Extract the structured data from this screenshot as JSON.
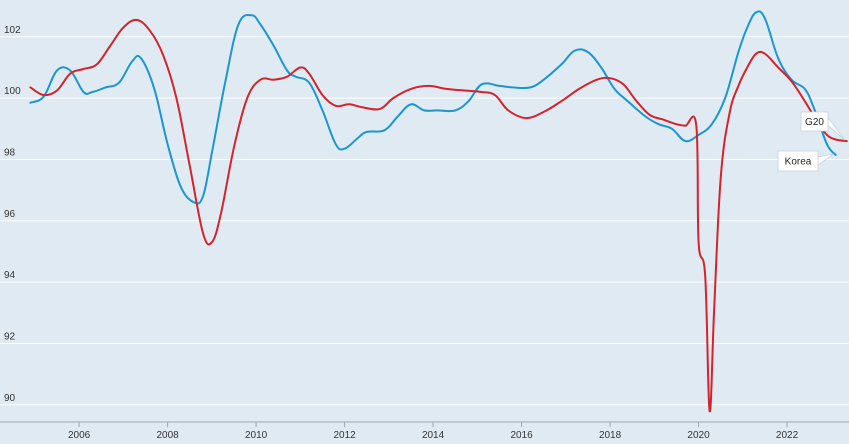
{
  "chart_data": {
    "type": "line",
    "title": "",
    "xlabel": "",
    "ylabel": "",
    "xlim": [
      2004.8,
      2023.4
    ],
    "ylim": [
      89.7,
      103.2
    ],
    "x_ticks": [
      2006,
      2008,
      2010,
      2012,
      2014,
      2016,
      2018,
      2020,
      2022
    ],
    "y_ticks": [
      90,
      92,
      94,
      96,
      98,
      100,
      102
    ],
    "grid": "horizontal",
    "series": [
      {
        "name": "Korea",
        "color": "#1a96d4",
        "points": [
          [
            2004.9,
            99.85
          ],
          [
            2005.2,
            100.05
          ],
          [
            2005.5,
            100.9
          ],
          [
            2005.8,
            100.9
          ],
          [
            2006.1,
            100.2
          ],
          [
            2006.3,
            100.2
          ],
          [
            2006.6,
            100.35
          ],
          [
            2006.9,
            100.5
          ],
          [
            2007.2,
            101.2
          ],
          [
            2007.4,
            101.3
          ],
          [
            2007.7,
            100.3
          ],
          [
            2008.0,
            98.5
          ],
          [
            2008.3,
            97.1
          ],
          [
            2008.6,
            96.6
          ],
          [
            2008.8,
            96.8
          ],
          [
            2009.0,
            98.2
          ],
          [
            2009.3,
            100.5
          ],
          [
            2009.6,
            102.4
          ],
          [
            2009.9,
            102.7
          ],
          [
            2010.1,
            102.4
          ],
          [
            2010.4,
            101.7
          ],
          [
            2010.7,
            100.9
          ],
          [
            2010.9,
            100.7
          ],
          [
            2011.2,
            100.5
          ],
          [
            2011.5,
            99.6
          ],
          [
            2011.8,
            98.5
          ],
          [
            2012.0,
            98.35
          ],
          [
            2012.3,
            98.7
          ],
          [
            2012.5,
            98.9
          ],
          [
            2012.9,
            98.95
          ],
          [
            2013.2,
            99.4
          ],
          [
            2013.5,
            99.8
          ],
          [
            2013.8,
            99.6
          ],
          [
            2014.1,
            99.6
          ],
          [
            2014.5,
            99.6
          ],
          [
            2014.8,
            99.9
          ],
          [
            2015.1,
            100.45
          ],
          [
            2015.5,
            100.4
          ],
          [
            2015.8,
            100.35
          ],
          [
            2016.2,
            100.35
          ],
          [
            2016.5,
            100.6
          ],
          [
            2016.9,
            101.1
          ],
          [
            2017.2,
            101.55
          ],
          [
            2017.5,
            101.5
          ],
          [
            2017.8,
            101.0
          ],
          [
            2018.1,
            100.3
          ],
          [
            2018.4,
            99.9
          ],
          [
            2018.8,
            99.4
          ],
          [
            2019.1,
            99.15
          ],
          [
            2019.4,
            99.0
          ],
          [
            2019.7,
            98.6
          ],
          [
            2020.0,
            98.8
          ],
          [
            2020.3,
            99.15
          ],
          [
            2020.6,
            100.0
          ],
          [
            2020.9,
            101.5
          ],
          [
            2021.1,
            102.3
          ],
          [
            2021.3,
            102.8
          ],
          [
            2021.5,
            102.6
          ],
          [
            2021.8,
            101.3
          ],
          [
            2022.1,
            100.6
          ],
          [
            2022.4,
            100.3
          ],
          [
            2022.6,
            99.7
          ],
          [
            2022.9,
            98.5
          ],
          [
            2023.1,
            98.15
          ]
        ]
      },
      {
        "name": "G20",
        "color": "#d4232b",
        "points": [
          [
            2004.9,
            100.35
          ],
          [
            2005.2,
            100.1
          ],
          [
            2005.5,
            100.25
          ],
          [
            2005.8,
            100.8
          ],
          [
            2006.1,
            100.95
          ],
          [
            2006.4,
            101.1
          ],
          [
            2006.7,
            101.7
          ],
          [
            2007.0,
            102.3
          ],
          [
            2007.3,
            102.55
          ],
          [
            2007.6,
            102.2
          ],
          [
            2007.9,
            101.4
          ],
          [
            2008.2,
            100.0
          ],
          [
            2008.5,
            97.8
          ],
          [
            2008.8,
            95.6
          ],
          [
            2009.0,
            95.3
          ],
          [
            2009.2,
            96.2
          ],
          [
            2009.5,
            98.4
          ],
          [
            2009.8,
            100.0
          ],
          [
            2010.1,
            100.6
          ],
          [
            2010.4,
            100.6
          ],
          [
            2010.7,
            100.7
          ],
          [
            2011.0,
            101.0
          ],
          [
            2011.2,
            100.8
          ],
          [
            2011.5,
            100.1
          ],
          [
            2011.8,
            99.75
          ],
          [
            2012.1,
            99.8
          ],
          [
            2012.4,
            99.7
          ],
          [
            2012.8,
            99.65
          ],
          [
            2013.1,
            100.0
          ],
          [
            2013.5,
            100.3
          ],
          [
            2013.9,
            100.4
          ],
          [
            2014.3,
            100.3
          ],
          [
            2014.7,
            100.25
          ],
          [
            2015.1,
            100.2
          ],
          [
            2015.4,
            100.1
          ],
          [
            2015.7,
            99.6
          ],
          [
            2016.1,
            99.35
          ],
          [
            2016.5,
            99.55
          ],
          [
            2016.9,
            99.9
          ],
          [
            2017.3,
            100.3
          ],
          [
            2017.7,
            100.6
          ],
          [
            2018.0,
            100.65
          ],
          [
            2018.3,
            100.45
          ],
          [
            2018.6,
            99.9
          ],
          [
            2018.9,
            99.45
          ],
          [
            2019.2,
            99.3
          ],
          [
            2019.5,
            99.15
          ],
          [
            2019.7,
            99.1
          ],
          [
            2019.95,
            99.1
          ],
          [
            2020.0,
            95.3
          ],
          [
            2020.15,
            94.2
          ],
          [
            2020.25,
            89.8
          ],
          [
            2020.35,
            93.0
          ],
          [
            2020.5,
            97.4
          ],
          [
            2020.7,
            99.5
          ],
          [
            2020.9,
            100.4
          ],
          [
            2021.1,
            101.0
          ],
          [
            2021.3,
            101.45
          ],
          [
            2021.5,
            101.45
          ],
          [
            2021.8,
            101.0
          ],
          [
            2022.1,
            100.55
          ],
          [
            2022.4,
            99.9
          ],
          [
            2022.7,
            99.2
          ],
          [
            2022.9,
            98.8
          ],
          [
            2023.1,
            98.65
          ],
          [
            2023.35,
            98.6
          ]
        ]
      }
    ]
  }
}
